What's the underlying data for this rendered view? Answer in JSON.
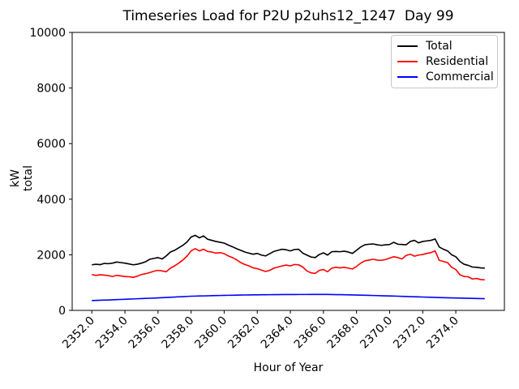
{
  "chart_data": {
    "type": "line",
    "title": "Timeseries Load for P2U p2uhs12_1247  Day 99",
    "xlabel": "Hour of Year",
    "ylabel": "kW total",
    "ylim": [
      0,
      10000
    ],
    "grid": false,
    "legend_position": "upper right",
    "xtick_labels": [
      "2352.0",
      "2354.0",
      "2356.0",
      "2358.0",
      "2360.0",
      "2362.0",
      "2364.0",
      "2366.0",
      "2368.0",
      "2370.0",
      "2372.0",
      "2374.0"
    ],
    "ytick_labels": [
      "0",
      "2000",
      "4000",
      "6000",
      "8000",
      "10000"
    ],
    "x": {
      "start": 2352.0,
      "step": 0.25,
      "count": 96
    },
    "series": [
      {
        "name": "Total",
        "color": "#000000",
        "values": [
          1640,
          1660,
          1645,
          1690,
          1680,
          1700,
          1740,
          1720,
          1700,
          1670,
          1640,
          1660,
          1700,
          1750,
          1840,
          1870,
          1900,
          1850,
          1960,
          2100,
          2160,
          2250,
          2340,
          2460,
          2640,
          2700,
          2610,
          2680,
          2560,
          2520,
          2480,
          2450,
          2420,
          2350,
          2290,
          2220,
          2160,
          2100,
          2060,
          2020,
          2050,
          1990,
          1960,
          2040,
          2120,
          2160,
          2200,
          2180,
          2140,
          2190,
          2200,
          2060,
          1990,
          1920,
          1900,
          2010,
          2070,
          1990,
          2110,
          2120,
          2110,
          2130,
          2100,
          2050,
          2160,
          2280,
          2360,
          2380,
          2390,
          2360,
          2340,
          2360,
          2370,
          2450,
          2380,
          2370,
          2360,
          2480,
          2520,
          2430,
          2480,
          2500,
          2520,
          2570,
          2280,
          2200,
          2140,
          2000,
          1930,
          1760,
          1660,
          1620,
          1560,
          1550,
          1530,
          1520
        ]
      },
      {
        "name": "Residential",
        "color": "#ff0000",
        "values": [
          1290,
          1260,
          1280,
          1270,
          1250,
          1220,
          1260,
          1240,
          1220,
          1210,
          1190,
          1230,
          1290,
          1320,
          1360,
          1410,
          1440,
          1420,
          1390,
          1520,
          1600,
          1700,
          1810,
          1950,
          2140,
          2220,
          2140,
          2200,
          2120,
          2100,
          2060,
          2080,
          2040,
          1960,
          1900,
          1820,
          1720,
          1650,
          1600,
          1530,
          1500,
          1450,
          1400,
          1440,
          1520,
          1560,
          1600,
          1630,
          1600,
          1650,
          1640,
          1560,
          1420,
          1350,
          1330,
          1440,
          1470,
          1390,
          1520,
          1550,
          1530,
          1550,
          1520,
          1490,
          1580,
          1700,
          1780,
          1810,
          1840,
          1810,
          1800,
          1830,
          1880,
          1930,
          1900,
          1850,
          1980,
          2020,
          1950,
          1990,
          2010,
          2050,
          2080,
          2140,
          1800,
          1760,
          1720,
          1550,
          1470,
          1280,
          1220,
          1210,
          1130,
          1150,
          1110,
          1100
        ]
      },
      {
        "name": "Commercial",
        "color": "#0000ff",
        "values": [
          355,
          360,
          365,
          370,
          375,
          381,
          387,
          394,
          400,
          406,
          412,
          419,
          425,
          431,
          437,
          444,
          450,
          458,
          465,
          473,
          480,
          488,
          495,
          503,
          510,
          514,
          518,
          521,
          525,
          529,
          533,
          536,
          540,
          543,
          546,
          549,
          552,
          554,
          556,
          558,
          560,
          562,
          563,
          565,
          566,
          567,
          569,
          570,
          571,
          571,
          572,
          572,
          572,
          573,
          573,
          574,
          575,
          573,
          570,
          568,
          566,
          562,
          559,
          555,
          552,
          548,
          544,
          540,
          536,
          532,
          528,
          524,
          520,
          515,
          510,
          505,
          500,
          495,
          490,
          486,
          481,
          476,
          471,
          467,
          462,
          458,
          454,
          450,
          446,
          442,
          438,
          434,
          431,
          428,
          425,
          421
        ]
      }
    ]
  }
}
